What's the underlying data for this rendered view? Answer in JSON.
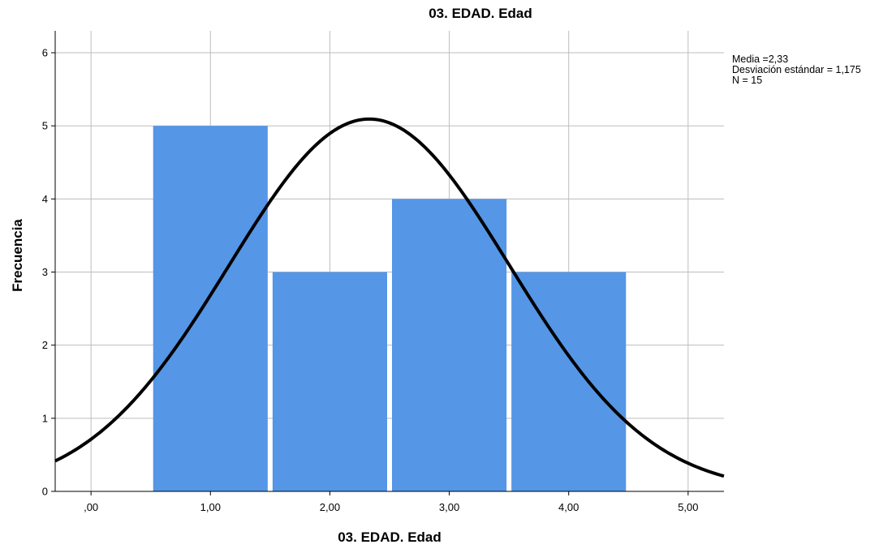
{
  "chart_data": {
    "type": "bar",
    "title": "03. EDAD. Edad",
    "xlabel": "03. EDAD. Edad",
    "ylabel": "Frecuencia",
    "bins": [
      {
        "x0": 0.5,
        "x1": 1.5,
        "value": 5
      },
      {
        "x0": 1.5,
        "x1": 2.5,
        "value": 3
      },
      {
        "x0": 2.5,
        "x1": 3.5,
        "value": 4
      },
      {
        "x0": 3.5,
        "x1": 4.5,
        "value": 3
      }
    ],
    "x_ticks": [
      0,
      1,
      2,
      3,
      4,
      5
    ],
    "x_tick_labels": [
      ",00",
      "1,00",
      "2,00",
      "3,00",
      "4,00",
      "5,00"
    ],
    "y_ticks": [
      0,
      1,
      2,
      3,
      4,
      5,
      6
    ],
    "y_tick_labels": [
      "0",
      "1",
      "2",
      "3",
      "4",
      "5",
      "6"
    ],
    "xlim": [
      -0.3,
      5.3
    ],
    "ylim": [
      0,
      6.3
    ],
    "grid": true,
    "normal_curve": {
      "mean": 2.33,
      "std": 1.175,
      "n": 15,
      "bin_width": 1
    },
    "stats": {
      "mean_label": "Media =2,33",
      "std_label": "Desviación estándar = 1,175",
      "n_label": "N = 15"
    },
    "colors": {
      "bar": "#5596e6",
      "curve": "#000000",
      "grid": "#bdbdbd",
      "axis": "#000000"
    }
  }
}
